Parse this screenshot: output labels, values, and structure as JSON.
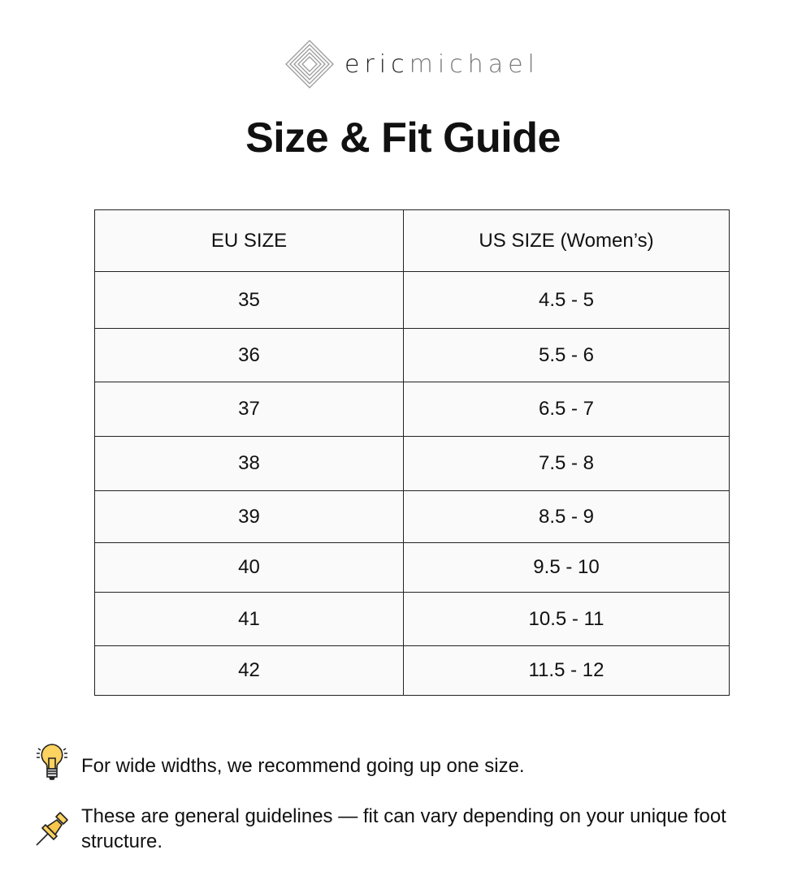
{
  "brand": {
    "name_part1": "eric",
    "name_part2": "michael"
  },
  "title": "Size & Fit Guide",
  "table": {
    "headers": [
      "EU SIZE",
      "US SIZE (Women’s)"
    ],
    "rows": [
      [
        "35",
        "4.5 - 5"
      ],
      [
        "36",
        "5.5 - 6"
      ],
      [
        "37",
        "6.5 - 7"
      ],
      [
        "38",
        "7.5 - 8"
      ],
      [
        "39",
        "8.5 - 9"
      ],
      [
        "40",
        "9.5 - 10"
      ],
      [
        "41",
        "10.5 - 11"
      ],
      [
        "42",
        "11.5 - 12"
      ]
    ]
  },
  "notes": [
    {
      "icon": "lightbulb-icon",
      "text": "For wide widths, we recommend going up one size."
    },
    {
      "icon": "pushpin-icon",
      "text": "These are general guidelines — fit can vary depending on your unique foot structure."
    }
  ]
}
